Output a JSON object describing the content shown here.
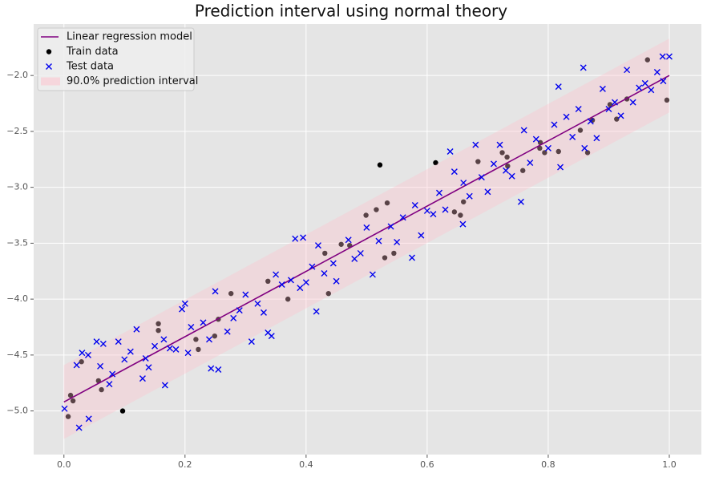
{
  "chart_data": {
    "type": "scatter",
    "title": "Prediction interval using normal theory",
    "xlim": [
      -0.05,
      1.053
    ],
    "ylim": [
      -5.39,
      -1.54
    ],
    "xticks": [
      {
        "value": 0,
        "label": "0.0"
      },
      {
        "value": 0.2,
        "label": "0.2"
      },
      {
        "value": 0.4,
        "label": "0.4"
      },
      {
        "value": 0.6,
        "label": "0.6"
      },
      {
        "value": 0.8,
        "label": "0.8"
      },
      {
        "value": 1,
        "label": "1.0"
      }
    ],
    "yticks": [
      {
        "value": -5,
        "label": "−5.0"
      },
      {
        "value": -4.5,
        "label": "−4.5"
      },
      {
        "value": -4,
        "label": "−4.0"
      },
      {
        "value": -3.5,
        "label": "−3.5"
      },
      {
        "value": -3,
        "label": "−3.0"
      },
      {
        "value": -2.5,
        "label": "−2.5"
      },
      {
        "value": -2,
        "label": "−2.0"
      }
    ],
    "grid": true,
    "legend": "upper left",
    "series": [
      {
        "name": "Linear regression model",
        "kind": "line",
        "color": "#800080",
        "x": [
          0,
          1
        ],
        "values": [
          -4.92,
          -2.0
        ]
      },
      {
        "name": "Train data",
        "kind": "scatter",
        "marker": "o",
        "color": "#000000",
        "x": [
          0.007,
          0.011,
          0.015,
          0.029,
          0.057,
          0.062,
          0.097,
          0.156,
          0.156,
          0.218,
          0.222,
          0.249,
          0.255,
          0.276,
          0.337,
          0.37,
          0.431,
          0.437,
          0.458,
          0.472,
          0.499,
          0.522,
          0.53,
          0.534,
          0.545,
          0.516,
          0.614,
          0.645,
          0.655,
          0.66,
          0.684,
          0.724,
          0.732,
          0.733,
          0.758,
          0.786,
          0.787,
          0.794,
          0.817,
          0.853,
          0.865,
          0.873,
          0.902,
          0.913,
          0.93,
          0.964,
          0.996
        ],
        "values": [
          -5.05,
          -4.86,
          -4.91,
          -4.56,
          -4.73,
          -4.81,
          -5.0,
          -4.22,
          -4.28,
          -4.36,
          -4.45,
          -4.33,
          -4.18,
          -3.95,
          -3.84,
          -4.0,
          -3.59,
          -3.95,
          -3.51,
          -3.52,
          -3.25,
          -2.8,
          -3.63,
          -3.14,
          -3.59,
          -3.2,
          -2.78,
          -3.22,
          -3.25,
          -3.13,
          -2.77,
          -2.69,
          -2.73,
          -2.81,
          -2.85,
          -2.65,
          -2.6,
          -2.69,
          -2.68,
          -2.49,
          -2.69,
          -2.4,
          -2.26,
          -2.39,
          -2.21,
          -1.86,
          -2.22
        ]
      },
      {
        "name": "Test data",
        "kind": "scatter",
        "marker": "x",
        "color": "#0000ee",
        "x": [
          0.001,
          0.025,
          0.041,
          0.021,
          0.054,
          0.065,
          0.167,
          0.243,
          0.255,
          0.337,
          0.343,
          0.382,
          0.395,
          0.417,
          0.575,
          0.638,
          0.659,
          0.755,
          0.817,
          0.858,
          1.0,
          0.989,
          0.03,
          0.04,
          0.06,
          0.075,
          0.08,
          0.09,
          0.1,
          0.11,
          0.12,
          0.13,
          0.135,
          0.14,
          0.15,
          0.165,
          0.175,
          0.185,
          0.195,
          0.2,
          0.205,
          0.21,
          0.23,
          0.24,
          0.25,
          0.27,
          0.28,
          0.29,
          0.3,
          0.31,
          0.32,
          0.33,
          0.35,
          0.36,
          0.375,
          0.39,
          0.4,
          0.41,
          0.42,
          0.43,
          0.445,
          0.45,
          0.47,
          0.48,
          0.49,
          0.5,
          0.51,
          0.52,
          0.54,
          0.55,
          0.56,
          0.58,
          0.59,
          0.6,
          0.61,
          0.62,
          0.63,
          0.645,
          0.66,
          0.67,
          0.68,
          0.69,
          0.7,
          0.71,
          0.72,
          0.73,
          0.74,
          0.76,
          0.77,
          0.78,
          0.8,
          0.81,
          0.82,
          0.83,
          0.84,
          0.85,
          0.86,
          0.87,
          0.88,
          0.89,
          0.9,
          0.91,
          0.92,
          0.93,
          0.94,
          0.95,
          0.96,
          0.97,
          0.98,
          0.99
        ],
        "values": [
          -4.98,
          -5.15,
          -5.07,
          -4.59,
          -4.38,
          -4.4,
          -4.77,
          -4.62,
          -4.63,
          -4.3,
          -4.33,
          -3.46,
          -3.45,
          -4.11,
          -3.63,
          -2.68,
          -3.33,
          -3.13,
          -2.1,
          -1.93,
          -1.83,
          -1.83,
          -4.48,
          -4.5,
          -4.6,
          -4.76,
          -4.67,
          -4.38,
          -4.54,
          -4.47,
          -4.27,
          -4.71,
          -4.53,
          -4.61,
          -4.42,
          -4.36,
          -4.44,
          -4.45,
          -4.09,
          -4.04,
          -4.48,
          -4.25,
          -4.21,
          -4.36,
          -3.93,
          -4.29,
          -4.17,
          -4.1,
          -3.96,
          -4.38,
          -4.04,
          -4.12,
          -3.78,
          -3.87,
          -3.83,
          -3.9,
          -3.85,
          -3.71,
          -3.52,
          -3.77,
          -3.68,
          -3.84,
          -3.47,
          -3.64,
          -3.59,
          -3.36,
          -3.78,
          -3.48,
          -3.35,
          -3.49,
          -3.27,
          -3.16,
          -3.43,
          -3.21,
          -3.24,
          -3.05,
          -3.2,
          -2.86,
          -2.96,
          -3.08,
          -2.62,
          -2.91,
          -3.04,
          -2.79,
          -2.62,
          -2.85,
          -2.9,
          -2.49,
          -2.78,
          -2.57,
          -2.65,
          -2.44,
          -2.82,
          -2.37,
          -2.55,
          -2.3,
          -2.65,
          -2.41,
          -2.56,
          -2.12,
          -2.3,
          -2.24,
          -2.36,
          -1.95,
          -2.24,
          -2.11,
          -2.07,
          -2.13,
          -1.97,
          -2.05
        ]
      },
      {
        "name": "90.0% prediction interval",
        "kind": "band",
        "color": "#ffc0cb",
        "x": [
          0,
          1
        ],
        "lower": [
          -5.25,
          -2.33
        ],
        "upper": [
          -4.59,
          -1.67
        ]
      }
    ]
  }
}
